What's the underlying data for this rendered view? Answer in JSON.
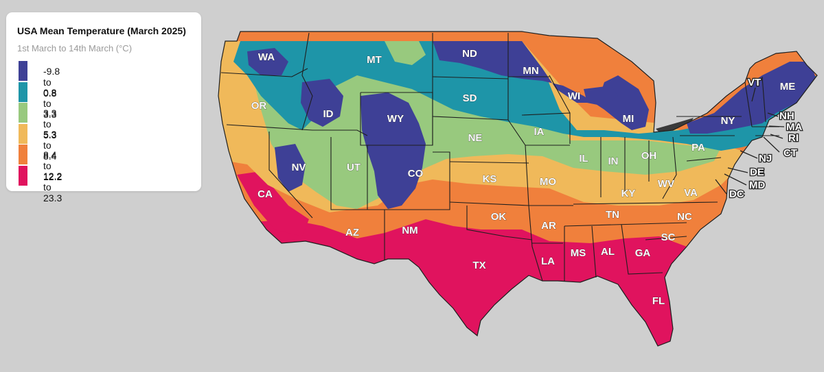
{
  "legend": {
    "title": "USA Mean Temperature (March 2025)",
    "subtitle": "1st March to 14th March (°C)",
    "items": [
      {
        "label": "-9.8 to 0.8",
        "color": "#3e4096"
      },
      {
        "label": "0.8 to 3.3",
        "color": "#1e95a8"
      },
      {
        "label": "3.3 to 5.3",
        "color": "#98c97e"
      },
      {
        "label": "5.3 to 8.4",
        "color": "#f0b95a"
      },
      {
        "label": "8.4 to 12.2",
        "color": "#f0803c"
      },
      {
        "label": "12.2 to 23.3",
        "color": "#e0135e"
      }
    ]
  },
  "states": [
    "WA",
    "OR",
    "CA",
    "ID",
    "NV",
    "MT",
    "WY",
    "UT",
    "AZ",
    "CO",
    "NM",
    "ND",
    "SD",
    "NE",
    "KS",
    "OK",
    "TX",
    "MN",
    "IA",
    "MO",
    "AR",
    "LA",
    "WI",
    "IL",
    "MS",
    "AL",
    "TN",
    "KY",
    "IN",
    "MI",
    "OH",
    "GA",
    "FL",
    "SC",
    "NC",
    "VA",
    "WV",
    "PA",
    "NY",
    "VT",
    "ME",
    "NH",
    "MA",
    "RI",
    "CT",
    "NJ",
    "DE",
    "MD",
    "DC"
  ],
  "colors": {
    "background": "#cfcfcf",
    "lakes": "#3a3a3a",
    "borders": "#1e1e1e"
  }
}
